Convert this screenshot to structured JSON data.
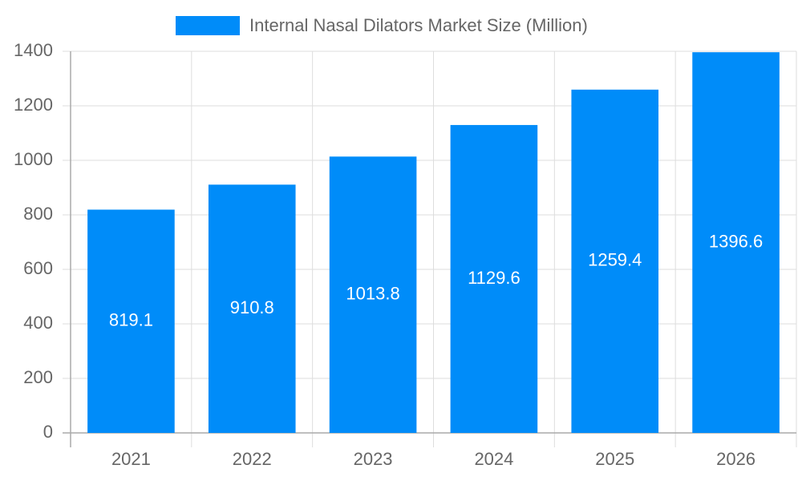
{
  "chart_data": {
    "type": "bar",
    "categories": [
      "2021",
      "2022",
      "2023",
      "2024",
      "2025",
      "2026"
    ],
    "series": [
      {
        "name": "Internal Nasal Dilators Market Size (Million)",
        "color": "#008cf9",
        "values": [
          819.1,
          910.8,
          1013.8,
          1129.6,
          1259.4,
          1396.6
        ]
      }
    ],
    "ylim": [
      0,
      1400
    ],
    "yticks": [
      0,
      200,
      400,
      600,
      800,
      1000,
      1200,
      1400
    ],
    "grid": true
  }
}
